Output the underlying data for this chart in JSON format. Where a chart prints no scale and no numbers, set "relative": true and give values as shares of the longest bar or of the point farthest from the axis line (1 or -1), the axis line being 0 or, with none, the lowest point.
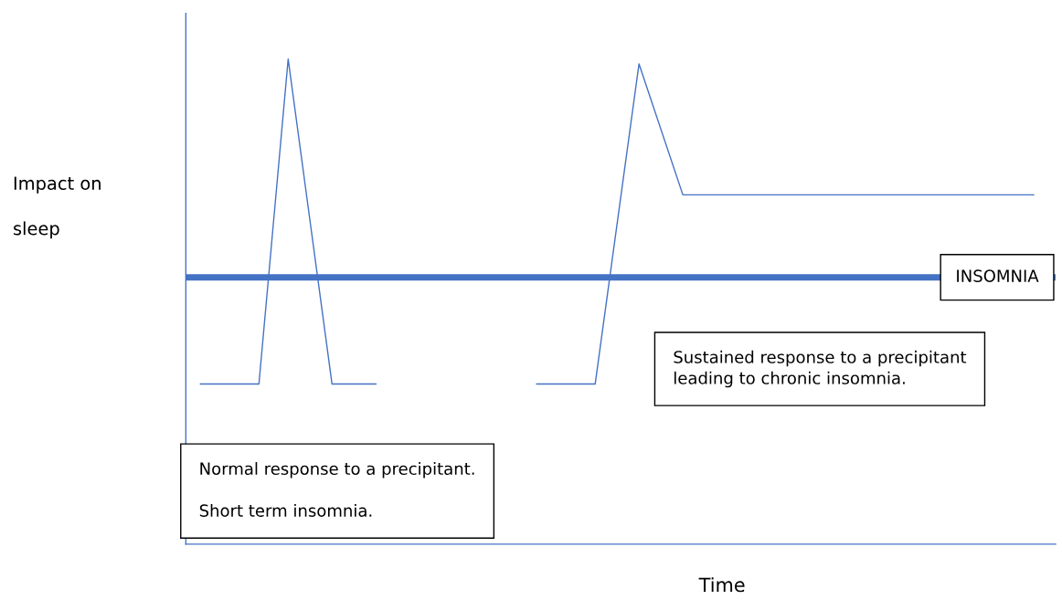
{
  "chart_data": {
    "type": "line",
    "relative": true,
    "xlabel": "Time",
    "ylabel": "Impact on\n\nsleep",
    "tick_labels": false,
    "legend": false,
    "marker": "none",
    "line_style": "solid",
    "categories": [
      null,
      null,
      null,
      null,
      null,
      null,
      null,
      null,
      null,
      null,
      null,
      null,
      null,
      null,
      null,
      null,
      null,
      null,
      null,
      null,
      null,
      null,
      null,
      null,
      null,
      null,
      null,
      null,
      null,
      null,
      null,
      null,
      null,
      null,
      null,
      null,
      null,
      null,
      null,
      null,
      null,
      null,
      null,
      null,
      null,
      null,
      null,
      null,
      null,
      null,
      null,
      null,
      null,
      null,
      null,
      null,
      null,
      null,
      null,
      null
    ],
    "series": [
      {
        "color": "#4472c4",
        "values": [
          null,
          0.33,
          null,
          null,
          null,
          0.33,
          null,
          1,
          null,
          null,
          0.33,
          null,
          null,
          0.33,
          null,
          null,
          null,
          null,
          null,
          null,
          null,
          null,
          null,
          null,
          null,
          null,
          null,
          null,
          null,
          null,
          null,
          null,
          null,
          null,
          null,
          null,
          null,
          null,
          null,
          null,
          null,
          null,
          null,
          null,
          null,
          null,
          null,
          null,
          null,
          null,
          null,
          null,
          null,
          null,
          null,
          null,
          null,
          null,
          null,
          null
        ]
      },
      {
        "color": "#4472c4",
        "values": [
          null,
          null,
          null,
          null,
          null,
          null,
          null,
          null,
          null,
          null,
          null,
          null,
          null,
          null,
          null,
          null,
          null,
          null,
          null,
          null,
          null,
          null,
          null,
          null,
          0.33,
          null,
          null,
          null,
          0.33,
          null,
          null,
          0.99,
          null,
          null,
          0.72,
          null,
          null,
          null,
          null,
          null,
          null,
          null,
          null,
          null,
          null,
          null,
          null,
          null,
          null,
          null,
          null,
          null,
          null,
          null,
          null,
          null,
          null,
          null,
          0.72,
          null
        ]
      }
    ],
    "ref_lines": [
      {
        "axis": "y",
        "value": 0.55,
        "label": "INSOMNIA",
        "color": "#4472c4"
      }
    ],
    "annotations": [
      "Normal response to a precipitant.\n\nShort term insomnia.",
      "Sustained response to a precipitant\nleading to chronic insomnia."
    ]
  }
}
